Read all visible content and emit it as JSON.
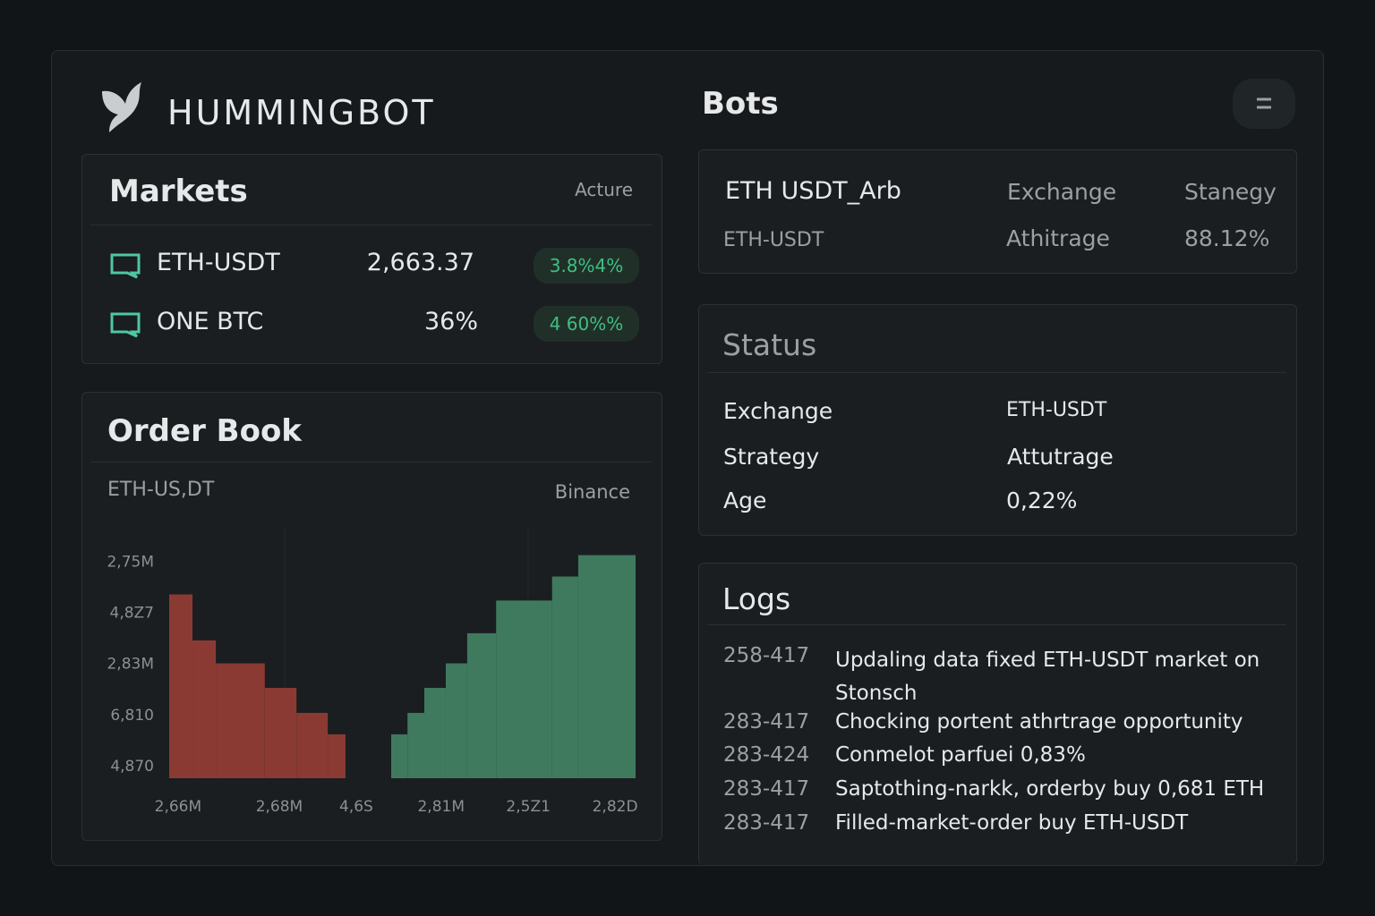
{
  "brand": "HUMMINGBOT",
  "markets": {
    "title": "Markets",
    "status": "Acture",
    "rows": [
      {
        "pair": "ETH-USDT",
        "price": "2,663.37",
        "change": "3.8%4%"
      },
      {
        "pair": "ONE BTC",
        "price": "36%",
        "change": "4 60%%"
      }
    ]
  },
  "order_book": {
    "title": "Order Book",
    "pair": "ETH-US,DT",
    "exchange": "Binance",
    "chart_data": {
      "type": "histogram",
      "xlim": [
        0,
        100
      ],
      "xticks": [
        {
          "value": 1.9,
          "label": "2,66M"
        },
        {
          "value": 23.6,
          "label": "2,68M"
        },
        {
          "value": 40.1,
          "label": "4,6S"
        },
        {
          "value": 58.3,
          "label": "2,81M"
        },
        {
          "value": 77.0,
          "label": "2,5Z1"
        },
        {
          "value": 95.6,
          "label": "2,82D"
        }
      ],
      "ylim": [
        -0.23,
        4.5
      ],
      "yticks": [
        {
          "value": 4,
          "label": "2,75M"
        },
        {
          "value": 3,
          "label": "4,8Z7"
        },
        {
          "value": 2,
          "label": "2,83M"
        },
        {
          "value": 1,
          "label": "6,810"
        },
        {
          "value": 0,
          "label": "4,870"
        }
      ],
      "series": [
        {
          "color": "#8b3a33",
          "bins": [
            0,
            5.0,
            10.0,
            20.5,
            27.3,
            34.0,
            37.8
          ],
          "values": [
            3.37,
            2.47,
            2.02,
            1.54,
            1.05,
            0.63
          ]
        },
        {
          "color": "#3f7a5e",
          "bins": [
            47.6,
            51.1,
            54.7,
            59.3,
            63.9,
            70.1,
            82.1,
            87.7,
            100
          ],
          "values": [
            0.63,
            1.05,
            1.54,
            2.02,
            2.61,
            3.25,
            3.72,
            4.14
          ]
        }
      ]
    }
  },
  "bots": {
    "title": "Bots",
    "name": "ETH USDT_Arb",
    "pair": "ETH-USDT",
    "headers": [
      "Exchange",
      "Stanegy"
    ],
    "values": [
      "Athitrage",
      "88.12%"
    ]
  },
  "status": {
    "title": "Status",
    "rows": [
      [
        "Exchange",
        "ETH-USDT"
      ],
      [
        "Strategy",
        "Attutrage"
      ],
      [
        "Age",
        "0,22%"
      ]
    ]
  },
  "logs": {
    "title": "Logs",
    "entries": [
      {
        "time": "258-417",
        "message": "Updaling data fixed ETH-USDT market on Stonsch"
      },
      {
        "time": "283-417",
        "message": "Chocking portent athrtrage opportunity"
      },
      {
        "time": "283-424",
        "message": "Conmelot parfuei 0,83%"
      },
      {
        "time": "283-417",
        "message": "Saptothing-narkk, orderby buy 0,681 ETH"
      },
      {
        "time": "283-417",
        "message": "Filled-market-order buy ETH-USDT"
      }
    ]
  }
}
